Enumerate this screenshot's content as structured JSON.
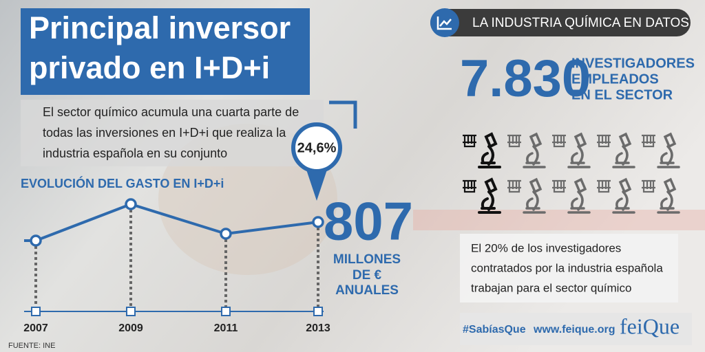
{
  "header": {
    "title_lines": [
      "Principal inversor",
      "privado en I+D+i"
    ],
    "banner": "LA INDUSTRIA QUÍMICA EN DATOS"
  },
  "intro_lines": [
    "El sector químico acumula una cuarta parte de",
    "todas las inversiones en I+D+i que realiza la",
    "industria española en su conjunto"
  ],
  "badge": "24,6%",
  "chart": {
    "type": "line",
    "title": "EVOLUCIÓN DEL GASTO EN I+D+i",
    "categories": [
      "2007",
      "2009",
      "2011",
      "2013"
    ],
    "values": [
      726,
      885,
      756,
      807
    ],
    "color": "#2e6aad"
  },
  "highlight": {
    "value": "807",
    "caption_lines": [
      "MILLONES",
      "DE €",
      "ANUALES"
    ]
  },
  "researchers": {
    "value": "7.830",
    "caption_lines": [
      "INVESTIGADORES",
      "EMPLEADOS",
      "EN EL SECTOR"
    ]
  },
  "icon_grid": {
    "total": 10,
    "highlighted": 2
  },
  "note_lines": [
    "El 20% de los investigadores",
    "contratados por la industria española",
    "trabajan para el sector químico"
  ],
  "footer": {
    "hashtag": "#SabíasQue",
    "url": "www.feique.org",
    "logo": "feiQue",
    "source": "FUENTE: INE"
  }
}
